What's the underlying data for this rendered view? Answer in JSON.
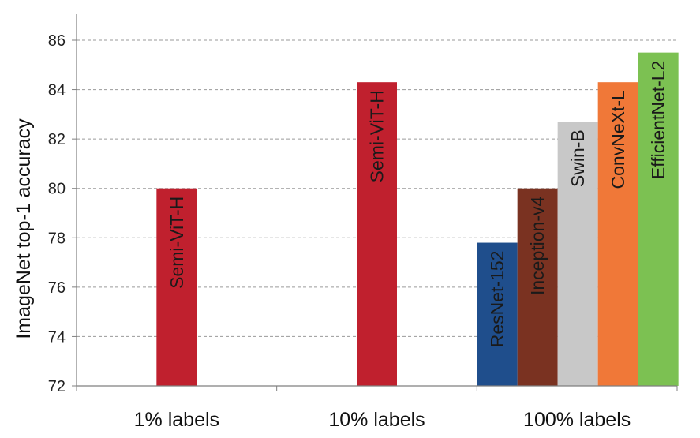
{
  "chart_data": {
    "type": "bar",
    "title": "",
    "xlabel": "",
    "ylabel": "ImageNet top-1 accuracy",
    "ylim": [
      72,
      86
    ],
    "yticks": [
      72,
      74,
      76,
      78,
      80,
      82,
      84,
      86
    ],
    "grid": true,
    "categories": [
      "1% labels",
      "10% labels",
      "100% labels"
    ],
    "bars": [
      {
        "category": "1% labels",
        "label": "Semi-ViT-H",
        "value": 80.0,
        "color": "#c0202e"
      },
      {
        "category": "10% labels",
        "label": "Semi-ViT-H",
        "value": 84.3,
        "color": "#c0202e"
      },
      {
        "category": "100% labels",
        "label": "ResNet-152",
        "value": 77.8,
        "color": "#1f4e8c"
      },
      {
        "category": "100% labels",
        "label": "Inception-v4",
        "value": 80.0,
        "color": "#7a3221"
      },
      {
        "category": "100% labels",
        "label": "Swin-B",
        "value": 82.7,
        "color": "#c8c8c8"
      },
      {
        "category": "100% labels",
        "label": "ConvNeXt-L",
        "value": 84.3,
        "color": "#f07838"
      },
      {
        "category": "100% labels",
        "label": "EfficientNet-L2",
        "value": 85.5,
        "color": "#7cc152"
      }
    ]
  }
}
